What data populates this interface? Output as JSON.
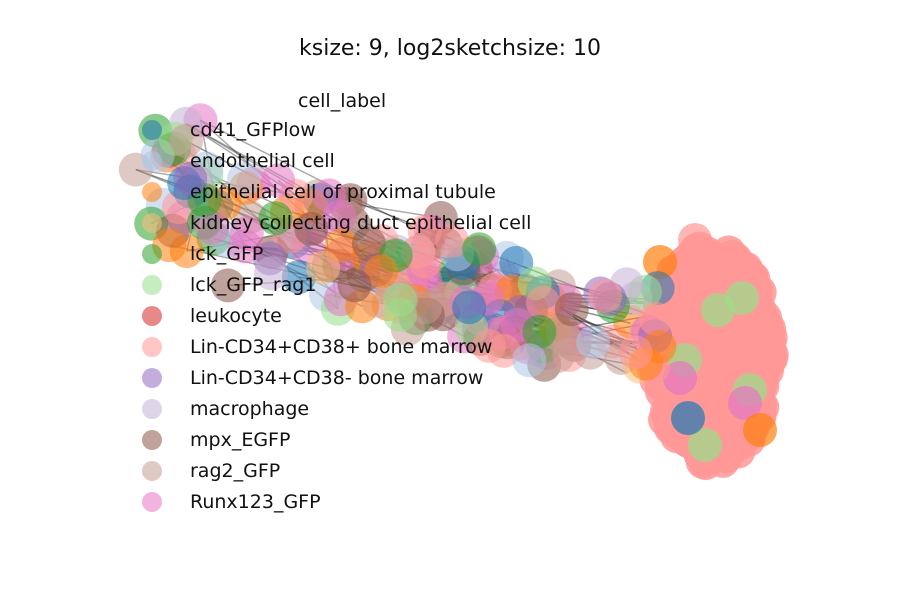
{
  "title": "ksize: 9, log2sketchsize: 10",
  "legend": {
    "title": "cell_label",
    "items": [
      {
        "label": "cd41_GFPlow",
        "color": "#1f77b4"
      },
      {
        "label": "endothelial cell",
        "color": "#aec7e8"
      },
      {
        "label": "epithelial cell of proximal tubule",
        "color": "#ff7f0e"
      },
      {
        "label": "kidney collecting duct epithelial cell",
        "color": "#ffbb78"
      },
      {
        "label": "lck_GFP",
        "color": "#2ca02c"
      },
      {
        "label": "lck_GFP_rag1",
        "color": "#98df8a"
      },
      {
        "label": "leukocyte",
        "color": "#d62728"
      },
      {
        "label": "Lin-CD34+CD38+ bone marrow",
        "color": "#ff9896"
      },
      {
        "label": "Lin-CD34+CD38- bone marrow",
        "color": "#9467bd"
      },
      {
        "label": "macrophage",
        "color": "#c5b0d5"
      },
      {
        "label": "mpx_EGFP",
        "color": "#8c564b"
      },
      {
        "label": "rag2_GFP",
        "color": "#c49c94"
      },
      {
        "label": "Runx123_GFP",
        "color": "#e377c2"
      }
    ]
  },
  "chart_data": {
    "type": "scatter",
    "subtype": "network graph",
    "title": "ksize: 9, log2sketchsize: 10",
    "legend_title": "cell_label",
    "legend_position": "upper-left",
    "axes_visible": false,
    "series": [
      {
        "name": "cd41_GFPlow",
        "color": "#1f77b4"
      },
      {
        "name": "endothelial cell",
        "color": "#aec7e8"
      },
      {
        "name": "epithelial cell of proximal tubule",
        "color": "#ff7f0e"
      },
      {
        "name": "kidney collecting duct epithelial cell",
        "color": "#ffbb78"
      },
      {
        "name": "lck_GFP",
        "color": "#2ca02c"
      },
      {
        "name": "lck_GFP_rag1",
        "color": "#98df8a"
      },
      {
        "name": "leukocyte",
        "color": "#d62728"
      },
      {
        "name": "Lin-CD34+CD38+ bone marrow",
        "color": "#ff9896"
      },
      {
        "name": "Lin-CD34+CD38- bone marrow",
        "color": "#9467bd"
      },
      {
        "name": "macrophage",
        "color": "#c5b0d5"
      },
      {
        "name": "mpx_EGFP",
        "color": "#8c564b"
      },
      {
        "name": "rag2_GFP",
        "color": "#c49c94"
      },
      {
        "name": "Runx123_GFP",
        "color": "#e377c2"
      }
    ]
  }
}
